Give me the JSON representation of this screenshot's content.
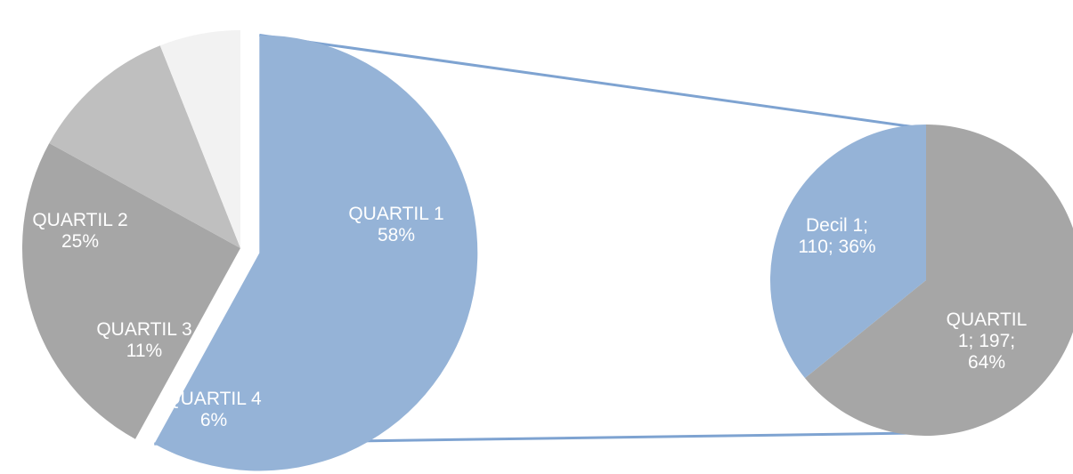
{
  "chart_data": [
    {
      "type": "pie",
      "categories": [
        "QUARTIL 1",
        "QUARTIL 2",
        "QUARTIL 3",
        "QUARTIL 4"
      ],
      "values": [
        58,
        25,
        11,
        6
      ],
      "unit": "%",
      "labels": [
        [
          "QUARTIL 1",
          "58%"
        ],
        [
          "QUARTIL 2",
          "25%"
        ],
        [
          "QUARTIL 3",
          "11%"
        ],
        [
          "QUARTIL 4",
          "6%"
        ]
      ],
      "colors": [
        "#95b3d7",
        "#a6a6a6",
        "#bfbfbf",
        "#f2f2f2"
      ],
      "exploded_slice": "QUARTIL 1"
    },
    {
      "type": "pie",
      "categories": [
        "Decil 1",
        "QUARTIL 1"
      ],
      "values": [
        110,
        197
      ],
      "percentages": [
        36,
        64
      ],
      "labels": [
        [
          "Decil 1;",
          "110; 36%"
        ],
        [
          "QUARTIL",
          "1; 197;",
          "64%"
        ]
      ],
      "colors": [
        "#95b3d7",
        "#a6a6a6"
      ]
    }
  ],
  "connector_color": "#7ea3d1"
}
